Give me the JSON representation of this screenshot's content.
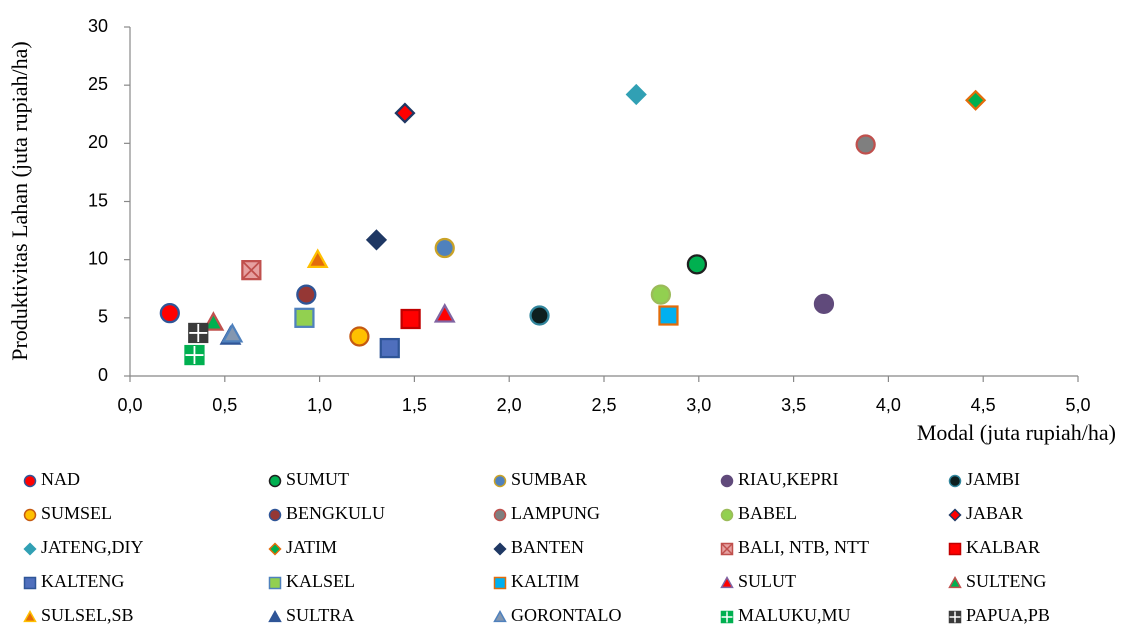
{
  "chart_data": {
    "type": "scatter",
    "x_label": "Modal (juta rupiah/ha)",
    "y_label": "Produktivitas Lahan (juta rupiah/ha)",
    "xlim": [
      0,
      5
    ],
    "ylim": [
      0,
      30
    ],
    "xticks": [
      {
        "value": 0,
        "label": "0,0"
      },
      {
        "value": 0.5,
        "label": "0,5"
      },
      {
        "value": 1,
        "label": "1,0"
      },
      {
        "value": 1.5,
        "label": "1,5"
      },
      {
        "value": 2,
        "label": "2,0"
      },
      {
        "value": 2.5,
        "label": "2,5"
      },
      {
        "value": 3,
        "label": "3,0"
      },
      {
        "value": 3.5,
        "label": "3,5"
      },
      {
        "value": 4,
        "label": "4,0"
      },
      {
        "value": 4.5,
        "label": "4,5"
      },
      {
        "value": 5,
        "label": "5,0"
      }
    ],
    "yticks": [
      0,
      5,
      10,
      15,
      20,
      25,
      30
    ],
    "series": [
      {
        "name": "NAD",
        "marker": "circle",
        "color": "#ff0000",
        "edge": "#2f5597",
        "x": [
          0.21
        ],
        "values": [
          5.4
        ]
      },
      {
        "name": "SUMUT",
        "marker": "circle",
        "color": "#00b050",
        "edge": "#1f1f1f",
        "x": [
          2.99
        ],
        "values": [
          9.6
        ]
      },
      {
        "name": "SUMBAR",
        "marker": "circle",
        "color": "#4f81bd",
        "edge": "#c9a227",
        "x": [
          1.66
        ],
        "values": [
          11.0
        ]
      },
      {
        "name": "RIAU,KEPRI",
        "marker": "circle",
        "color": "#604a7b",
        "edge": "#604a7b",
        "x": [
          3.66
        ],
        "values": [
          6.2
        ]
      },
      {
        "name": "JAMBI",
        "marker": "circle",
        "color": "#0d1f1f",
        "edge": "#31859c",
        "x": [
          2.16
        ],
        "values": [
          5.2
        ]
      },
      {
        "name": "SUMSEL",
        "marker": "circle",
        "color": "#ffc000",
        "edge": "#c55a11",
        "x": [
          1.21
        ],
        "values": [
          3.4
        ]
      },
      {
        "name": "BENGKULU",
        "marker": "circle",
        "color": "#953735",
        "edge": "#2f5597",
        "x": [
          0.93
        ],
        "values": [
          7.0
        ]
      },
      {
        "name": "LAMPUNG",
        "marker": "circle",
        "color": "#7f7f7f",
        "edge": "#c0504d",
        "x": [
          3.88
        ],
        "values": [
          19.9
        ]
      },
      {
        "name": "BABEL",
        "marker": "circle",
        "color": "#92d050",
        "edge": "#9bbb59",
        "x": [
          2.8
        ],
        "values": [
          7.0
        ]
      },
      {
        "name": "JABAR",
        "marker": "diamond",
        "color": "#ff0000",
        "edge": "#1f3864",
        "x": [
          1.45
        ],
        "values": [
          22.6
        ]
      },
      {
        "name": "JATENG,DIY",
        "marker": "diamond",
        "color": "#31a0b4",
        "edge": "#31a0b4",
        "x": [
          2.67
        ],
        "values": [
          24.2
        ]
      },
      {
        "name": "JATIM",
        "marker": "diamond",
        "color": "#00b050",
        "edge": "#e36c0a",
        "x": [
          4.46
        ],
        "values": [
          23.7
        ]
      },
      {
        "name": "BANTEN",
        "marker": "diamond",
        "color": "#1f3864",
        "edge": "#1f3864",
        "x": [
          1.3
        ],
        "values": [
          11.7
        ]
      },
      {
        "name": "BALI, NTB, NTT",
        "marker": "squarex",
        "color": "#e6a0a0",
        "edge": "#c0504d",
        "x": [
          0.64
        ],
        "values": [
          9.1
        ]
      },
      {
        "name": "KALBAR",
        "marker": "square",
        "color": "#ff0000",
        "edge": "#c00000",
        "x": [
          1.48
        ],
        "values": [
          4.9
        ]
      },
      {
        "name": "KALTENG",
        "marker": "square",
        "color": "#4f6fbd",
        "edge": "#2f5597",
        "x": [
          1.37
        ],
        "values": [
          2.4
        ]
      },
      {
        "name": "KALSEL",
        "marker": "square",
        "color": "#92d050",
        "edge": "#4f81bd",
        "x": [
          0.92
        ],
        "values": [
          5.0
        ]
      },
      {
        "name": "KALTIM",
        "marker": "square",
        "color": "#00b0f0",
        "edge": "#e36c0a",
        "x": [
          2.84
        ],
        "values": [
          5.2
        ]
      },
      {
        "name": "SULUT",
        "marker": "triangle",
        "color": "#ff0000",
        "edge": "#8064a2",
        "x": [
          1.66
        ],
        "values": [
          5.3
        ]
      },
      {
        "name": "SULTENG",
        "marker": "triangle",
        "color": "#00b050",
        "edge": "#c0504d",
        "x": [
          0.44
        ],
        "values": [
          4.6
        ]
      },
      {
        "name": "SULSEL,SB",
        "marker": "triangle",
        "color": "#e36c0a",
        "edge": "#ffc000",
        "x": [
          0.99
        ],
        "values": [
          10.0
        ]
      },
      {
        "name": "SULTRA",
        "marker": "triangle",
        "color": "#2f5597",
        "edge": "#2f5597",
        "x": [
          0.53
        ],
        "values": [
          3.4
        ]
      },
      {
        "name": "GORONTALO",
        "marker": "triangle",
        "color": "#8497b0",
        "edge": "#4f81bd",
        "x": [
          0.54
        ],
        "values": [
          3.6
        ]
      },
      {
        "name": "MALUKU,MU",
        "marker": "squareplus",
        "color": "#00b050",
        "edge": "#00b050",
        "x": [
          0.34
        ],
        "values": [
          1.8
        ]
      },
      {
        "name": "PAPUA,PB",
        "marker": "squareplus",
        "color": "#3a3a3a",
        "edge": "#3a3a3a",
        "x": [
          0.36
        ],
        "values": [
          3.7
        ]
      }
    ]
  }
}
